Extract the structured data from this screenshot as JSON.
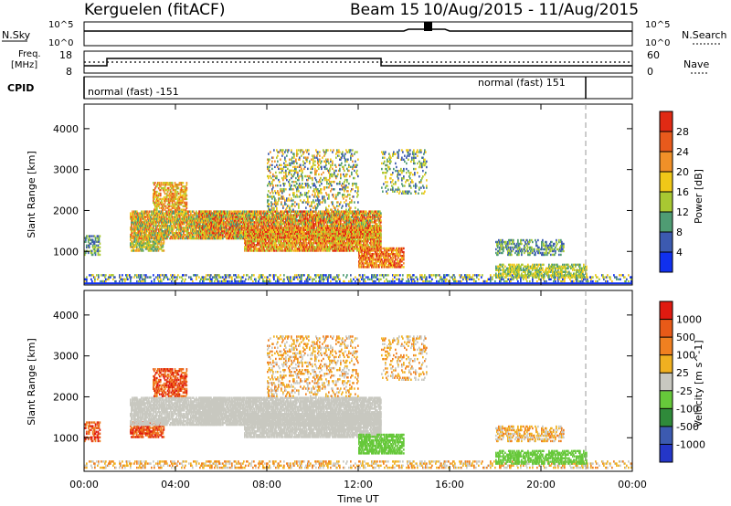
{
  "header": {
    "station": "Kerguelen (fitACF)",
    "beam": "Beam 15",
    "dates": "10/Aug/2015 - 11/Aug/2015"
  },
  "panels": {
    "nsky_label": "N.Sky",
    "nsky_ticks": [
      "10^5",
      "10^0"
    ],
    "nsearch_label": "N.Search",
    "nsearch_ticks": [
      "10^5",
      "10^0"
    ],
    "freq_label_1": "Freq.",
    "freq_label_2": "[MHz]",
    "freq_ticks": [
      "18",
      "8"
    ],
    "nave_label": "Nave",
    "nave_ticks": [
      "60",
      "0"
    ],
    "cpid_label": "CPID",
    "cpid_1": "normal (fast) -151",
    "cpid_2": "normal (fast) 151"
  },
  "chart_data": [
    {
      "type": "heatmap",
      "name": "power-panel",
      "ylabel": "Slant Range [km]",
      "yticks": [
        1000,
        2000,
        3000,
        4000
      ],
      "ylim": [
        180,
        4600
      ],
      "xlim_hours": [
        0,
        24
      ],
      "colorbar_label": "Power [dB]",
      "colorbar_ticks": [
        "4",
        "8",
        "12",
        "16",
        "20",
        "24",
        "28"
      ],
      "colorbar_colors": [
        "#1030ee",
        "#3c5ab0",
        "#4f9c73",
        "#a8c832",
        "#f0c818",
        "#f09028",
        "#e85a1c",
        "#e02a14"
      ]
    },
    {
      "type": "heatmap",
      "name": "velocity-panel",
      "ylabel": "Slant Range [km]",
      "yticks": [
        1000,
        2000,
        3000,
        4000
      ],
      "ylim": [
        180,
        4600
      ],
      "xlim_hours": [
        0,
        24
      ],
      "xlabel": "Time UT",
      "xticks": [
        "00:00",
        "04:00",
        "08:00",
        "12:00",
        "16:00",
        "20:00",
        "00:00"
      ],
      "colorbar_label": "Velocity [m s^-1]",
      "colorbar_ticks": [
        "1000",
        "500",
        "100",
        "25",
        "-25",
        "-100",
        "-500",
        "-1000"
      ],
      "colorbar_colors": [
        "#2436c8",
        "#3c5ab0",
        "#2f8a3a",
        "#66c83a",
        "#c8c8c0",
        "#f0b020",
        "#f08020",
        "#e85a18",
        "#e01a10"
      ]
    }
  ]
}
